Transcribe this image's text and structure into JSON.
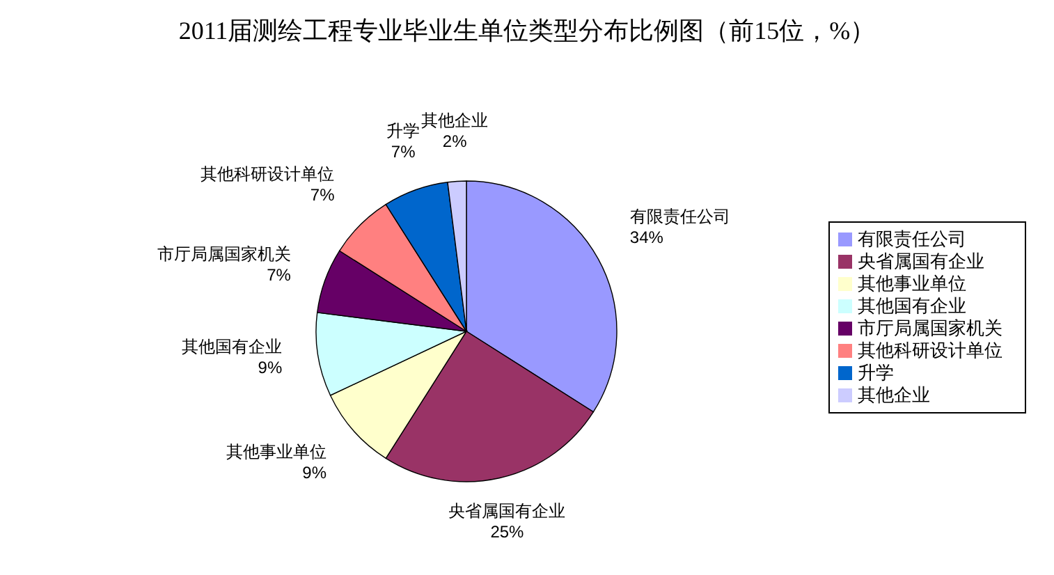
{
  "chart_data": {
    "type": "pie",
    "title": "2011届测绘工程专业毕业生单位类型分布比例图（前15位，%）",
    "categories": [
      "有限责任公司",
      "央省属国有企业",
      "其他事业单位",
      "其他国有企业",
      "市厅局属国家机关",
      "其他科研设计单位",
      "升学",
      "其他企业"
    ],
    "values": [
      34,
      25,
      9,
      9,
      7,
      7,
      7,
      2
    ],
    "value_labels": [
      "34%",
      "25%",
      "9%",
      "9%",
      "7%",
      "7%",
      "7%",
      "2%"
    ],
    "colors": [
      "#9999ff",
      "#993366",
      "#ffffcc",
      "#ccffff",
      "#660066",
      "#ff8080",
      "#0066cc",
      "#ccccff"
    ],
    "legend": "right"
  }
}
